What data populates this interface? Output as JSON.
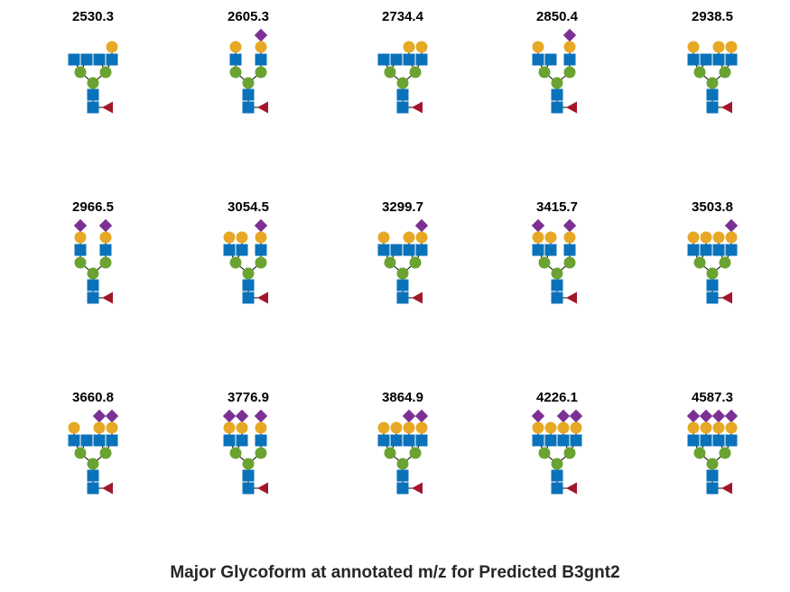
{
  "caption": "Major Glycoform at annotated m/z for Predicted B3gnt2",
  "colors": {
    "glcnac": "#0a72ba",
    "mannose": "#6aa332",
    "galactose": "#e6a825",
    "neuac": "#7b3193",
    "fucose": "#a3162c"
  },
  "glycans": [
    {
      "mz": "2530.3",
      "left": {
        "glcnac": 2,
        "gal": 0,
        "sia": 0
      },
      "right": {
        "glcnac": 2,
        "gal": 1,
        "sia": 0
      }
    },
    {
      "mz": "2605.3",
      "left": {
        "glcnac": 1,
        "gal": 1,
        "sia": 0
      },
      "right": {
        "glcnac": 1,
        "gal": 1,
        "sia": 1
      }
    },
    {
      "mz": "2734.4",
      "left": {
        "glcnac": 2,
        "gal": 0,
        "sia": 0
      },
      "right": {
        "glcnac": 2,
        "gal": 2,
        "sia": 0
      }
    },
    {
      "mz": "2850.4",
      "left": {
        "glcnac": 2,
        "gal": 1,
        "sia": 0
      },
      "right": {
        "glcnac": 1,
        "gal": 1,
        "sia": 1
      }
    },
    {
      "mz": "2938.5",
      "left": {
        "glcnac": 2,
        "gal": 1,
        "sia": 0
      },
      "right": {
        "glcnac": 2,
        "gal": 2,
        "sia": 0
      }
    },
    {
      "mz": "2966.5",
      "left": {
        "glcnac": 1,
        "gal": 1,
        "sia": 1
      },
      "right": {
        "glcnac": 1,
        "gal": 1,
        "sia": 1
      }
    },
    {
      "mz": "3054.5",
      "left": {
        "glcnac": 2,
        "gal": 2,
        "sia": 0
      },
      "right": {
        "glcnac": 1,
        "gal": 1,
        "sia": 1
      }
    },
    {
      "mz": "3299.7",
      "left": {
        "glcnac": 2,
        "gal": 1,
        "sia": 0
      },
      "right": {
        "glcnac": 2,
        "gal": 2,
        "sia": 1
      }
    },
    {
      "mz": "3415.7",
      "left": {
        "glcnac": 2,
        "gal": 2,
        "sia": 1
      },
      "right": {
        "glcnac": 1,
        "gal": 1,
        "sia": 1
      }
    },
    {
      "mz": "3503.8",
      "left": {
        "glcnac": 2,
        "gal": 2,
        "sia": 0
      },
      "right": {
        "glcnac": 2,
        "gal": 2,
        "sia": 1
      }
    },
    {
      "mz": "3660.8",
      "left": {
        "glcnac": 2,
        "gal": 1,
        "sia": 0
      },
      "right": {
        "glcnac": 2,
        "gal": 2,
        "sia": 2
      }
    },
    {
      "mz": "3776.9",
      "left": {
        "glcnac": 2,
        "gal": 2,
        "sia": 2
      },
      "right": {
        "glcnac": 1,
        "gal": 1,
        "sia": 1
      }
    },
    {
      "mz": "3864.9",
      "left": {
        "glcnac": 2,
        "gal": 2,
        "sia": 0
      },
      "right": {
        "glcnac": 2,
        "gal": 2,
        "sia": 2
      }
    },
    {
      "mz": "4226.1",
      "left": {
        "glcnac": 2,
        "gal": 2,
        "sia": 1
      },
      "right": {
        "glcnac": 2,
        "gal": 2,
        "sia": 2
      }
    },
    {
      "mz": "4587.3",
      "left": {
        "glcnac": 2,
        "gal": 2,
        "sia": 2
      },
      "right": {
        "glcnac": 2,
        "gal": 2,
        "sia": 2
      }
    }
  ]
}
